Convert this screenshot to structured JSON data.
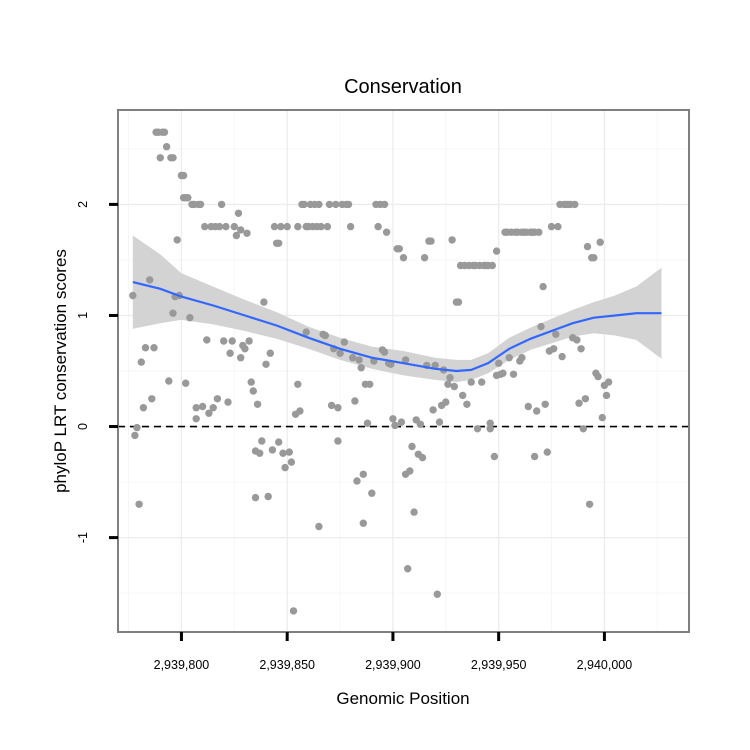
{
  "chart_data": {
    "type": "scatter",
    "title": "Conservation",
    "xlabel": "Genomic Position",
    "ylabel": "phyloP LRT conservation scores",
    "xlim": [
      2939770,
      2940040
    ],
    "ylim": [
      -1.85,
      2.85
    ],
    "x_ticks": [
      2939800,
      2939850,
      2939900,
      2939950,
      2940000
    ],
    "x_tick_labels": [
      "2,939,800",
      "2,939,850",
      "2,939,900",
      "2,939,950",
      "2,940,000"
    ],
    "y_ticks": [
      -1,
      0,
      1,
      2
    ],
    "y_tick_labels": [
      "-1",
      "0",
      "1",
      "2"
    ],
    "grid": true,
    "reference_line": {
      "y": 0,
      "style": "dashed",
      "color": "#000000"
    },
    "point_color": "#999999",
    "smooth_color": "#3366FF",
    "band_color": "#D3D3D3",
    "points": [
      [
        2939777,
        1.18
      ],
      [
        2939778,
        -0.08
      ],
      [
        2939779,
        -0.01
      ],
      [
        2939780,
        -0.7
      ],
      [
        2939781,
        0.58
      ],
      [
        2939782,
        0.17
      ],
      [
        2939783,
        0.71
      ],
      [
        2939785,
        1.32
      ],
      [
        2939786,
        0.25
      ],
      [
        2939787,
        0.71
      ],
      [
        2939788,
        2.65
      ],
      [
        2939789,
        2.65
      ],
      [
        2939790,
        2.42
      ],
      [
        2939791,
        2.65
      ],
      [
        2939792,
        2.65
      ],
      [
        2939793,
        2.52
      ],
      [
        2939794,
        0.41
      ],
      [
        2939795,
        2.42
      ],
      [
        2939796,
        2.42
      ],
      [
        2939796,
        1.02
      ],
      [
        2939797,
        1.17
      ],
      [
        2939798,
        1.68
      ],
      [
        2939799,
        1.18
      ],
      [
        2939800,
        2.26
      ],
      [
        2939801,
        2.26
      ],
      [
        2939801,
        2.06
      ],
      [
        2939802,
        2.06
      ],
      [
        2939802,
        0.39
      ],
      [
        2939803,
        2.06
      ],
      [
        2939804,
        0.98
      ],
      [
        2939805,
        2.0
      ],
      [
        2939806,
        2.0
      ],
      [
        2939807,
        0.07
      ],
      [
        2939807,
        0.17
      ],
      [
        2939808,
        2.0
      ],
      [
        2939809,
        2.0
      ],
      [
        2939810,
        0.18
      ],
      [
        2939811,
        1.8
      ],
      [
        2939812,
        0.78
      ],
      [
        2939813,
        0.12
      ],
      [
        2939814,
        1.8
      ],
      [
        2939815,
        0.17
      ],
      [
        2939816,
        1.8
      ],
      [
        2939817,
        0.25
      ],
      [
        2939818,
        1.8
      ],
      [
        2939819,
        2.0
      ],
      [
        2939820,
        0.77
      ],
      [
        2939821,
        1.8
      ],
      [
        2939822,
        0.22
      ],
      [
        2939823,
        0.66
      ],
      [
        2939824,
        0.77
      ],
      [
        2939825,
        1.8
      ],
      [
        2939826,
        1.72
      ],
      [
        2939827,
        1.92
      ],
      [
        2939828,
        0.62
      ],
      [
        2939828,
        1.77
      ],
      [
        2939829,
        0.73
      ],
      [
        2939830,
        0.7
      ],
      [
        2939831,
        1.74
      ],
      [
        2939832,
        0.77
      ],
      [
        2939833,
        0.4
      ],
      [
        2939834,
        0.32
      ],
      [
        2939835,
        -0.64
      ],
      [
        2939835,
        -0.22
      ],
      [
        2939836,
        0.2
      ],
      [
        2939837,
        -0.24
      ],
      [
        2939838,
        -0.13
      ],
      [
        2939839,
        1.12
      ],
      [
        2939840,
        0.56
      ],
      [
        2939841,
        -0.63
      ],
      [
        2939842,
        0.66
      ],
      [
        2939843,
        -0.21
      ],
      [
        2939844,
        1.8
      ],
      [
        2939845,
        1.65
      ],
      [
        2939846,
        1.65
      ],
      [
        2939846,
        -0.14
      ],
      [
        2939847,
        1.8
      ],
      [
        2939848,
        -0.24
      ],
      [
        2939849,
        -0.37
      ],
      [
        2939850,
        1.8
      ],
      [
        2939851,
        -0.23
      ],
      [
        2939852,
        -0.32
      ],
      [
        2939853,
        -1.66
      ],
      [
        2939854,
        0.11
      ],
      [
        2939855,
        1.8
      ],
      [
        2939855,
        0.38
      ],
      [
        2939856,
        0.14
      ],
      [
        2939857,
        2.0
      ],
      [
        2939858,
        2.0
      ],
      [
        2939859,
        1.8
      ],
      [
        2939859,
        0.85
      ],
      [
        2939860,
        1.8
      ],
      [
        2939861,
        2.0
      ],
      [
        2939862,
        1.8
      ],
      [
        2939863,
        2.0
      ],
      [
        2939864,
        1.8
      ],
      [
        2939865,
        -0.9
      ],
      [
        2939865,
        2.0
      ],
      [
        2939866,
        1.8
      ],
      [
        2939867,
        0.83
      ],
      [
        2939868,
        0.82
      ],
      [
        2939869,
        1.8
      ],
      [
        2939870,
        2.0
      ],
      [
        2939871,
        0.19
      ],
      [
        2939872,
        0.7
      ],
      [
        2939873,
        2.0
      ],
      [
        2939874,
        0.17
      ],
      [
        2939874,
        -0.13
      ],
      [
        2939875,
        0.66
      ],
      [
        2939876,
        2.0
      ],
      [
        2939877,
        0.76
      ],
      [
        2939878,
        2.0
      ],
      [
        2939879,
        2.0
      ],
      [
        2939880,
        1.8
      ],
      [
        2939881,
        0.62
      ],
      [
        2939882,
        0.23
      ],
      [
        2939883,
        -0.49
      ],
      [
        2939884,
        0.6
      ],
      [
        2939885,
        0.53
      ],
      [
        2939886,
        -0.43
      ],
      [
        2939886,
        -0.87
      ],
      [
        2939887,
        0.38
      ],
      [
        2939888,
        0.03
      ],
      [
        2939889,
        0.38
      ],
      [
        2939890,
        -0.6
      ],
      [
        2939891,
        0.59
      ],
      [
        2939892,
        2.0
      ],
      [
        2939893,
        1.8
      ],
      [
        2939894,
        2.0
      ],
      [
        2939895,
        0.69
      ],
      [
        2939896,
        2.0
      ],
      [
        2939896,
        0.67
      ],
      [
        2939897,
        1.75
      ],
      [
        2939898,
        0.57
      ],
      [
        2939899,
        0.56
      ],
      [
        2939900,
        0.07
      ],
      [
        2939901,
        0.01
      ],
      [
        2939902,
        1.6
      ],
      [
        2939903,
        1.6
      ],
      [
        2939904,
        0.04
      ],
      [
        2939905,
        1.52
      ],
      [
        2939906,
        -0.43
      ],
      [
        2939906,
        0.6
      ],
      [
        2939907,
        -1.28
      ],
      [
        2939908,
        -0.4
      ],
      [
        2939909,
        -0.18
      ],
      [
        2939910,
        -0.77
      ],
      [
        2939911,
        0.06
      ],
      [
        2939912,
        -0.25
      ],
      [
        2939913,
        0.02
      ],
      [
        2939914,
        -0.28
      ],
      [
        2939915,
        1.52
      ],
      [
        2939916,
        0.55
      ],
      [
        2939917,
        1.67
      ],
      [
        2939918,
        1.67
      ],
      [
        2939919,
        0.15
      ],
      [
        2939920,
        0.55
      ],
      [
        2939921,
        -1.51
      ],
      [
        2939922,
        0.04
      ],
      [
        2939923,
        0.19
      ],
      [
        2939924,
        0.51
      ],
      [
        2939925,
        0.22
      ],
      [
        2939926,
        0.38
      ],
      [
        2939927,
        0.44
      ],
      [
        2939928,
        1.68
      ],
      [
        2939929,
        0.36
      ],
      [
        2939930,
        1.12
      ],
      [
        2939931,
        1.12
      ],
      [
        2939932,
        1.45
      ],
      [
        2939933,
        0.28
      ],
      [
        2939934,
        1.45
      ],
      [
        2939935,
        0.2
      ],
      [
        2939936,
        1.45
      ],
      [
        2939937,
        0.4
      ],
      [
        2939938,
        1.45
      ],
      [
        2939939,
        1.45
      ],
      [
        2939940,
        -0.02
      ],
      [
        2939941,
        1.45
      ],
      [
        2939942,
        0.4
      ],
      [
        2939943,
        1.45
      ],
      [
        2939944,
        1.45
      ],
      [
        2939945,
        1.45
      ],
      [
        2939946,
        0.03
      ],
      [
        2939946,
        -0.02
      ],
      [
        2939947,
        1.45
      ],
      [
        2939948,
        -0.27
      ],
      [
        2939949,
        1.58
      ],
      [
        2939949,
        0.46
      ],
      [
        2939950,
        0.57
      ],
      [
        2939951,
        0.47
      ],
      [
        2939952,
        0.48
      ],
      [
        2939953,
        1.75
      ],
      [
        2939954,
        1.75
      ],
      [
        2939955,
        0.62
      ],
      [
        2939956,
        1.75
      ],
      [
        2939957,
        0.47
      ],
      [
        2939958,
        1.75
      ],
      [
        2939959,
        1.75
      ],
      [
        2939960,
        0.59
      ],
      [
        2939961,
        1.75
      ],
      [
        2939961,
        0.62
      ],
      [
        2939962,
        1.75
      ],
      [
        2939963,
        1.75
      ],
      [
        2939964,
        0.18
      ],
      [
        2939965,
        1.75
      ],
      [
        2939966,
        1.75
      ],
      [
        2939967,
        1.75
      ],
      [
        2939967,
        -0.27
      ],
      [
        2939968,
        0.14
      ],
      [
        2939969,
        1.75
      ],
      [
        2939970,
        0.9
      ],
      [
        2939971,
        1.26
      ],
      [
        2939972,
        0.2
      ],
      [
        2939973,
        -0.23
      ],
      [
        2939974,
        0.68
      ],
      [
        2939975,
        1.8
      ],
      [
        2939976,
        0.7
      ],
      [
        2939977,
        0.83
      ],
      [
        2939978,
        1.8
      ],
      [
        2939979,
        2.0
      ],
      [
        2939980,
        0.63
      ],
      [
        2939981,
        2.0
      ],
      [
        2939982,
        2.0
      ],
      [
        2939983,
        2.0
      ],
      [
        2939984,
        2.0
      ],
      [
        2939985,
        0.8
      ],
      [
        2939986,
        2.0
      ],
      [
        2939987,
        0.78
      ],
      [
        2939988,
        0.21
      ],
      [
        2939989,
        0.7
      ],
      [
        2939990,
        -0.02
      ],
      [
        2939991,
        0.25
      ],
      [
        2939992,
        1.62
      ],
      [
        2939993,
        -0.7
      ],
      [
        2939994,
        1.52
      ],
      [
        2939995,
        1.52
      ],
      [
        2939996,
        0.48
      ],
      [
        2939997,
        0.45
      ],
      [
        2939998,
        1.66
      ],
      [
        2939999,
        0.08
      ],
      [
        2940000,
        0.37
      ],
      [
        2940001,
        0.28
      ],
      [
        2940002,
        0.4
      ]
    ],
    "smooth": [
      [
        2939777,
        1.3
      ],
      [
        2939790,
        1.24
      ],
      [
        2939800,
        1.17
      ],
      [
        2939815,
        1.09
      ],
      [
        2939830,
        1.0
      ],
      [
        2939845,
        0.91
      ],
      [
        2939860,
        0.8
      ],
      [
        2939875,
        0.7
      ],
      [
        2939890,
        0.62
      ],
      [
        2939905,
        0.57
      ],
      [
        2939920,
        0.52
      ],
      [
        2939930,
        0.5
      ],
      [
        2939937,
        0.51
      ],
      [
        2939945,
        0.57
      ],
      [
        2939955,
        0.7
      ],
      [
        2939965,
        0.79
      ],
      [
        2939975,
        0.86
      ],
      [
        2939985,
        0.93
      ],
      [
        2939995,
        0.98
      ],
      [
        2940005,
        1.0
      ],
      [
        2940015,
        1.02
      ],
      [
        2940027,
        1.02
      ]
    ],
    "band": {
      "upper": [
        1.72,
        1.55,
        1.38,
        1.26,
        1.14,
        1.03,
        0.9,
        0.8,
        0.72,
        0.68,
        0.62,
        0.6,
        0.6,
        0.66,
        0.8,
        0.89,
        0.97,
        1.05,
        1.12,
        1.18,
        1.26,
        1.43
      ],
      "lower": [
        0.88,
        0.93,
        0.96,
        0.92,
        0.86,
        0.79,
        0.7,
        0.6,
        0.52,
        0.46,
        0.42,
        0.4,
        0.42,
        0.48,
        0.6,
        0.69,
        0.75,
        0.81,
        0.84,
        0.82,
        0.78,
        0.61
      ]
    }
  }
}
